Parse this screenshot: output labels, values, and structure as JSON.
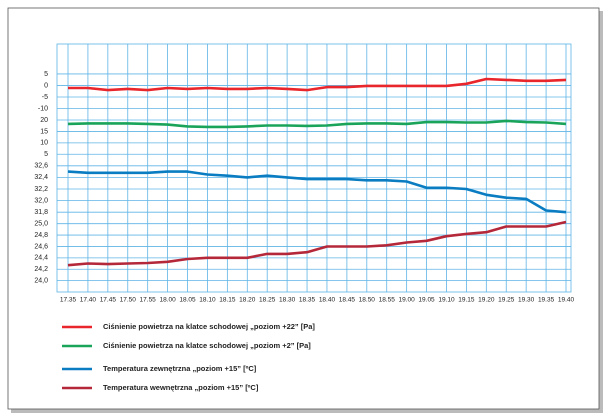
{
  "chart_data": {
    "type": "line",
    "grid": true,
    "categories": [
      "17.35",
      "17.40",
      "17.45",
      "17.50",
      "17.55",
      "18.00",
      "18.05",
      "18.10",
      "18.15",
      "18.20",
      "18.25",
      "18.30",
      "18.35",
      "18.40",
      "18.45",
      "18.50",
      "18.55",
      "19.00",
      "19.05",
      "19.10",
      "19.15",
      "19.20",
      "19.25",
      "19.30",
      "19.35",
      "19.40"
    ],
    "panels": [
      {
        "ylim": [
          -15,
          18
        ],
        "yticks": [
          5,
          0,
          -5,
          -10
        ],
        "series": [
          {
            "name": "Ciśnienie powietrza na klatce schodowej „poziom +22” [Pa]",
            "color": "#e8262b",
            "values": [
              -1.1,
              -1.1,
              -2,
              -1.5,
              -2,
              -1.1,
              -1.5,
              -1.1,
              -1.5,
              -1.5,
              -1.1,
              -1.5,
              -2,
              -0.7,
              -0.7,
              -0.2,
              -0.2,
              -0.2,
              -0.2,
              -0.2,
              0.7,
              2.8,
              2.4,
              2.0,
              2.0,
              2.4
            ]
          }
        ]
      },
      {
        "ylim": [
          2.5,
          20
        ],
        "yticks": [
          20,
          15,
          10,
          5
        ],
        "series": [
          {
            "name": "Ciśnienie powietrza na klatce schodowej „poziom +2” [Pa]",
            "color": "#1aa45a",
            "values": [
              18.3,
              18.5,
              18.5,
              18.5,
              18.3,
              18.0,
              17.2,
              17.0,
              17.0,
              17.2,
              17.6,
              17.6,
              17.4,
              17.6,
              18.3,
              18.5,
              18.5,
              18.3,
              19.1,
              19.1,
              18.9,
              18.9,
              19.6,
              19.1,
              18.9,
              18.3
            ]
          }
        ]
      },
      {
        "ylim": [
          31.7,
          32.7
        ],
        "yticks": [
          {
            "value": 32.6,
            "label": "32,6"
          },
          {
            "value": 32.4,
            "label": "32,4"
          },
          {
            "value": 32.2,
            "label": "32,2"
          },
          {
            "value": 32.0,
            "label": "32,0"
          },
          {
            "value": 31.8,
            "label": "31,8"
          }
        ],
        "series": [
          {
            "name": "Temperatura zewnętrzna „poziom +15” [ºC]",
            "color": "#0a7cc1",
            "values": [
              32.5,
              32.48,
              32.48,
              32.48,
              32.48,
              32.5,
              32.5,
              32.45,
              32.43,
              32.4,
              32.43,
              32.4,
              32.37,
              32.37,
              32.37,
              32.35,
              32.35,
              32.33,
              32.22,
              32.22,
              32.2,
              32.1,
              32.05,
              32.03,
              31.83,
              31.8
            ]
          }
        ]
      },
      {
        "ylim": [
          23.8,
          25.1
        ],
        "yticks": [
          {
            "value": 25.0,
            "label": "25,0"
          },
          {
            "value": 24.8,
            "label": "24,8"
          },
          {
            "value": 24.6,
            "label": "24,6"
          },
          {
            "value": 24.4,
            "label": "24,4"
          },
          {
            "value": 24.2,
            "label": "24,2"
          },
          {
            "value": 24.0,
            "label": "24,0"
          }
        ],
        "series": [
          {
            "name": "Temperatura wewnętrzna „poziom +15” [ºC]",
            "color": "#b5283a",
            "values": [
              24.27,
              24.3,
              24.29,
              24.3,
              24.31,
              24.33,
              24.38,
              24.4,
              24.4,
              24.4,
              24.47,
              24.47,
              24.5,
              24.6,
              24.6,
              24.6,
              24.62,
              24.67,
              24.7,
              24.78,
              24.82,
              24.85,
              24.95,
              24.95,
              24.95,
              25.03
            ]
          }
        ]
      }
    ]
  }
}
